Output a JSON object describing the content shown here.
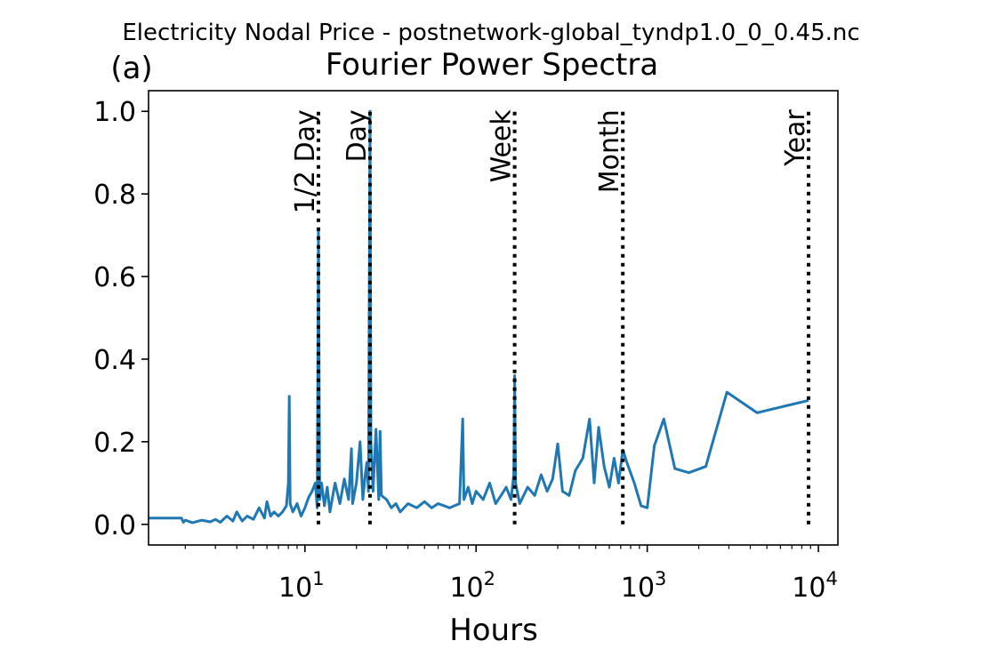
{
  "chart_data": {
    "type": "line",
    "suptitle": "Electricity Nodal Price - postnetwork-global_tyndp1.0_0_0.45.nc",
    "panel_label": "(a)",
    "title": "Fourier Power Spectra",
    "xlabel": "Hours",
    "ylabel": "",
    "xscale": "log",
    "xlim": [
      1.22,
      13000
    ],
    "ylim": [
      -0.05,
      1.05
    ],
    "x_ticks": [
      {
        "value": 10,
        "base": "10",
        "exp": "1"
      },
      {
        "value": 100,
        "base": "10",
        "exp": "2"
      },
      {
        "value": 1000,
        "base": "10",
        "exp": "3"
      },
      {
        "value": 10000,
        "base": "10",
        "exp": "4"
      }
    ],
    "y_ticks": [
      "0.0",
      "0.2",
      "0.4",
      "0.6",
      "0.8",
      "1.0"
    ],
    "y_tick_values": [
      0.0,
      0.2,
      0.4,
      0.6,
      0.8,
      1.0
    ],
    "grid": false,
    "line_color": "#1f77b4",
    "reference_color": "#000000",
    "reference_lines": [
      {
        "label": "1/2 Day",
        "x": 12
      },
      {
        "label": "Day",
        "x": 24
      },
      {
        "label": "Week",
        "x": 168
      },
      {
        "label": "Month",
        "x": 720
      },
      {
        "label": "Year",
        "x": 8760
      }
    ],
    "series": [
      {
        "x": [
          1.2,
          1.9,
          1.95,
          2.0,
          2.2,
          2.5,
          2.8,
          3.0,
          3.2,
          3.5,
          3.8,
          4.0,
          4.3,
          4.6,
          5.0,
          5.4,
          5.8,
          6.0,
          6.3,
          6.6,
          7.0,
          7.4,
          7.8,
          8.0,
          8.1,
          8.2,
          8.5,
          9.0,
          9.5,
          10.0,
          10.5,
          11.0,
          11.5,
          11.8,
          12.0,
          12.2,
          12.5,
          13.0,
          13.5,
          14.0,
          15.0,
          16.0,
          17.0,
          18.0,
          18.7,
          19.0,
          20.0,
          21.0,
          21.8,
          22.5,
          23.0,
          23.5,
          24.0,
          24.3,
          25.0,
          26.0,
          27.0,
          27.5,
          28.0,
          30.0,
          32.0,
          34.0,
          36.0,
          40.0,
          45.0,
          50.0,
          55.0,
          60.0,
          70.0,
          80.0,
          83.5,
          85.0,
          90.0,
          95.0,
          100.0,
          110.0,
          120.0,
          130.0,
          140.0,
          150.0,
          160.0,
          166.0,
          168.0,
          170.0,
          180.0,
          200.0,
          220.0,
          240.0,
          260.0,
          280.0,
          300.0,
          320.0,
          350.0,
          380.0,
          420.0,
          460.0,
          490.0,
          520.0,
          560.0,
          600.0,
          640.0,
          680.0,
          720.0,
          760.0,
          840.0,
          920.0,
          1000.0,
          1100.0,
          1250.0,
          1450.0,
          1750.0,
          2200.0,
          2920.0,
          4380.0,
          8760.0
        ],
        "y": [
          0.015,
          0.015,
          0.005,
          0.01,
          0.004,
          0.01,
          0.006,
          0.012,
          0.005,
          0.02,
          0.008,
          0.03,
          0.008,
          0.02,
          0.012,
          0.04,
          0.015,
          0.055,
          0.02,
          0.03,
          0.02,
          0.03,
          0.045,
          0.1,
          0.31,
          0.05,
          0.03,
          0.05,
          0.02,
          0.04,
          0.065,
          0.08,
          0.1,
          0.04,
          0.715,
          0.06,
          0.1,
          0.045,
          0.09,
          0.03,
          0.1,
          0.05,
          0.11,
          0.06,
          0.183,
          0.05,
          0.1,
          0.2,
          0.06,
          0.12,
          0.15,
          0.08,
          1.0,
          0.2,
          0.08,
          0.23,
          0.06,
          0.225,
          0.07,
          0.06,
          0.04,
          0.05,
          0.03,
          0.05,
          0.04,
          0.055,
          0.04,
          0.05,
          0.04,
          0.05,
          0.255,
          0.06,
          0.09,
          0.05,
          0.08,
          0.06,
          0.1,
          0.05,
          0.07,
          0.09,
          0.06,
          0.12,
          0.36,
          0.1,
          0.05,
          0.09,
          0.07,
          0.12,
          0.08,
          0.11,
          0.195,
          0.08,
          0.07,
          0.13,
          0.16,
          0.255,
          0.1,
          0.235,
          0.14,
          0.09,
          0.16,
          0.1,
          0.18,
          0.15,
          0.1,
          0.045,
          0.04,
          0.19,
          0.255,
          0.135,
          0.125,
          0.14,
          0.32,
          0.27,
          0.3
        ]
      }
    ]
  }
}
